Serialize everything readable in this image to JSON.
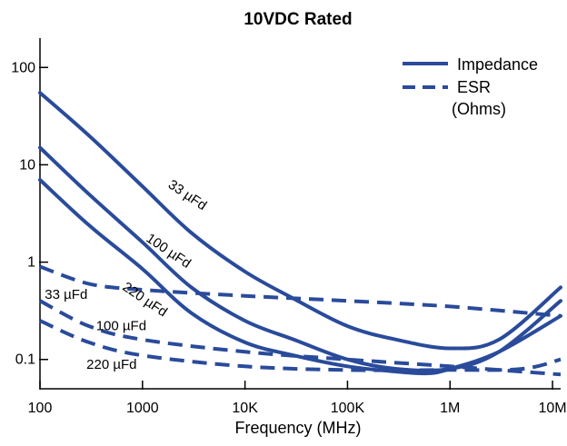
{
  "chart_data": {
    "type": "line",
    "title": "10VDC Rated",
    "xlabel": "Frequency (MHz)",
    "ylabel": "",
    "x_scale": "log",
    "y_scale": "log",
    "xlim": [
      100,
      12000000
    ],
    "ylim": [
      0.05,
      200
    ],
    "grid": false,
    "legend_position": "top-right",
    "x_ticks": [
      {
        "value": 100,
        "label": "100"
      },
      {
        "value": 1000,
        "label": "1000"
      },
      {
        "value": 10000,
        "label": "10K"
      },
      {
        "value": 100000,
        "label": "100K"
      },
      {
        "value": 1000000,
        "label": "1M"
      },
      {
        "value": 10000000,
        "label": "10M"
      }
    ],
    "y_ticks": [
      {
        "value": 100,
        "label": "100"
      },
      {
        "value": 10,
        "label": "10"
      },
      {
        "value": 1,
        "label": "1"
      },
      {
        "value": 0.1,
        "label": "0.1"
      }
    ],
    "legend": [
      {
        "label": "Impedance",
        "style": "solid"
      },
      {
        "label": "ESR",
        "style": "dashed"
      },
      {
        "label": "(Ohms)",
        "style": "none"
      }
    ],
    "color": "#2a4b9b",
    "series": [
      {
        "curve": "33 µFd",
        "kind": "impedance",
        "style": "solid",
        "x": [
          100,
          300,
          1000,
          3000,
          10000,
          30000,
          100000,
          300000,
          1000000,
          3000000,
          12000000
        ],
        "y": [
          55,
          20,
          6,
          2,
          0.8,
          0.42,
          0.22,
          0.16,
          0.13,
          0.16,
          0.55
        ]
      },
      {
        "curve": "100 µFd",
        "kind": "impedance",
        "style": "solid",
        "x": [
          100,
          300,
          1000,
          3000,
          10000,
          30000,
          100000,
          300000,
          1000000,
          3000000,
          12000000
        ],
        "y": [
          15,
          5,
          1.6,
          0.55,
          0.25,
          0.16,
          0.1,
          0.08,
          0.08,
          0.12,
          0.4
        ]
      },
      {
        "curve": "220 µFd",
        "kind": "impedance",
        "style": "solid",
        "x": [
          100,
          300,
          1000,
          3000,
          10000,
          30000,
          100000,
          300000,
          600000,
          1000000,
          3000000,
          12000000
        ],
        "y": [
          7,
          2.4,
          0.85,
          0.3,
          0.15,
          0.11,
          0.085,
          0.075,
          0.072,
          0.08,
          0.12,
          0.28
        ]
      },
      {
        "curve": "33 µFd",
        "kind": "esr",
        "style": "dashed",
        "x": [
          100,
          300,
          1000,
          10000,
          100000,
          1000000,
          12000000
        ],
        "y": [
          0.9,
          0.6,
          0.52,
          0.45,
          0.4,
          0.35,
          0.28
        ]
      },
      {
        "curve": "100 µFd",
        "kind": "esr",
        "style": "dashed",
        "x": [
          100,
          300,
          1000,
          10000,
          100000,
          1000000,
          5000000,
          12000000
        ],
        "y": [
          0.4,
          0.22,
          0.16,
          0.12,
          0.1,
          0.085,
          0.075,
          0.07
        ]
      },
      {
        "curve": "220 µFd",
        "kind": "esr",
        "style": "dashed",
        "x": [
          100,
          300,
          1000,
          10000,
          100000,
          1000000,
          5000000,
          12000000
        ],
        "y": [
          0.25,
          0.15,
          0.11,
          0.085,
          0.078,
          0.078,
          0.08,
          0.1
        ]
      }
    ],
    "annotations": [
      {
        "text": "33 µFd",
        "x": 2600,
        "y": 4.5
      },
      {
        "text": "100 µFd",
        "x": 1700,
        "y": 1.2
      },
      {
        "text": "220 µFd",
        "x": 1000,
        "y": 0.38
      },
      {
        "text": "33 µFd",
        "x": 180,
        "y": 0.42
      },
      {
        "text": "100 µFd",
        "x": 620,
        "y": 0.2
      },
      {
        "text": "220 µFd",
        "x": 500,
        "y": 0.08
      }
    ]
  }
}
